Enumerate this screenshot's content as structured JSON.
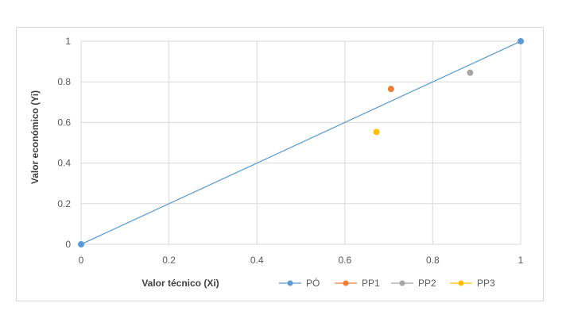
{
  "chart_data": {
    "type": "scatter",
    "title": "",
    "xlabel": "Valor técnico (Xi)",
    "ylabel": "Valor económico (Yi)",
    "xlim": [
      0,
      1
    ],
    "ylim": [
      0,
      1
    ],
    "xticks": [
      "0",
      "0.2",
      "0.4",
      "0.6",
      "0.8",
      "1"
    ],
    "yticks": [
      "0",
      "0.2",
      "0.4",
      "0.6",
      "0.8",
      "1"
    ],
    "grid": true,
    "legend_position": "bottom",
    "series": [
      {
        "name": "PÓ",
        "color": "#5b9bd5",
        "line": true,
        "points": [
          [
            0,
            0
          ],
          [
            1,
            1
          ]
        ]
      },
      {
        "name": "PP1",
        "color": "#ed7d31",
        "line": false,
        "points": [
          [
            0.705,
            0.765
          ]
        ]
      },
      {
        "name": "PP2",
        "color": "#a5a5a5",
        "line": false,
        "points": [
          [
            0.885,
            0.845
          ]
        ]
      },
      {
        "name": "PP3",
        "color": "#ffc000",
        "line": false,
        "points": [
          [
            0.672,
            0.553
          ]
        ]
      }
    ]
  }
}
